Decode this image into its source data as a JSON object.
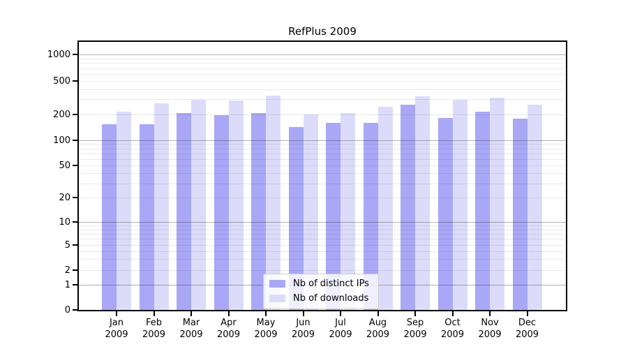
{
  "chart_data": {
    "type": "bar",
    "title": "RefPlus 2009",
    "categories": [
      "Jan",
      "Feb",
      "Mar",
      "Apr",
      "May",
      "Jun",
      "Jul",
      "Aug",
      "Sep",
      "Oct",
      "Nov",
      "Dec"
    ],
    "category_year": "2009",
    "series": [
      {
        "name": "Nb of distinct IPs",
        "color": "#a8a8f6",
        "values": [
          152,
          152,
          205,
          196,
          207,
          143,
          158,
          160,
          258,
          180,
          216,
          178
        ]
      },
      {
        "name": "Nb of downloads",
        "color": "#dcdcfa",
        "values": [
          214,
          272,
          297,
          289,
          335,
          198,
          204,
          243,
          328,
          297,
          314,
          259
        ]
      }
    ],
    "yaxis": {
      "scale": "symlog",
      "range": [
        0,
        1000
      ],
      "tick_values": [
        0,
        1,
        2,
        5,
        10,
        20,
        50,
        100,
        200,
        500,
        1000
      ],
      "tick_labels": [
        "0",
        "1",
        "2",
        "5",
        "10",
        "20",
        "50",
        "100",
        "200",
        "500",
        "1000"
      ],
      "major_grid_values": [
        1,
        10,
        100,
        1000
      ]
    },
    "grid": {
      "horizontal": true,
      "major_color": "#b3b3b3",
      "minor_color": "#e9e9e9"
    },
    "legend": {
      "position": "lower-center"
    }
  }
}
